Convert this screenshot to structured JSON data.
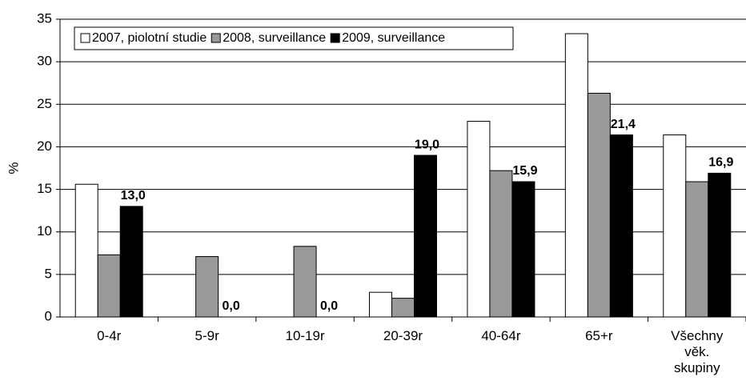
{
  "chart_data": {
    "type": "bar",
    "y_label": "%",
    "categories": [
      "0-4r",
      "5-9r",
      "10-19r",
      "20-39r",
      "40-64r",
      "65+r",
      "Všechny věk. skupiny"
    ],
    "series": [
      {
        "name": "2007, piolotní studie",
        "color": "#ffffff",
        "values": [
          15.6,
          null,
          null,
          2.9,
          23.0,
          33.3,
          21.4
        ]
      },
      {
        "name": "2008, surveillance",
        "color": "#999999",
        "values": [
          7.3,
          7.1,
          8.3,
          2.2,
          17.2,
          26.3,
          15.9
        ]
      },
      {
        "name": "2009, surveillance",
        "color": "#000000",
        "values": [
          13.0,
          0.0,
          0.0,
          19.0,
          15.9,
          21.4,
          16.9
        ],
        "value_labels": [
          "13,0",
          "0,0",
          "0,0",
          "19,0",
          "15,9",
          "21,4",
          "16,9"
        ]
      }
    ],
    "ylim": [
      0,
      35
    ],
    "yticks": [
      0,
      5,
      10,
      15,
      20,
      25,
      30,
      35
    ],
    "grid": true,
    "legend": "upper left"
  }
}
